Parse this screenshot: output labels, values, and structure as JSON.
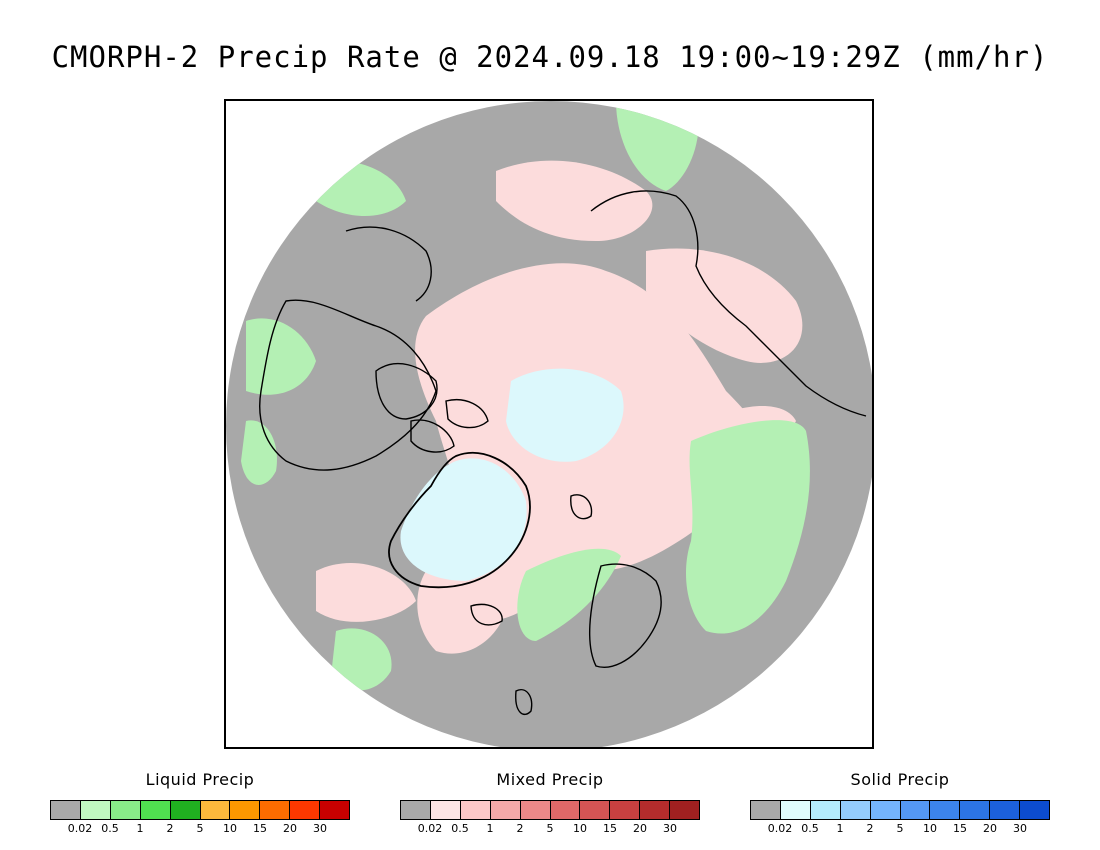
{
  "title": "CMORPH-2 Precip Rate @ 2024.09.18 19:00~19:29Z (mm/hr)",
  "colors": {
    "background_gray": "#a8a8a8",
    "coastline": "#000000",
    "mixed_light": "#fcdcdc",
    "liquid_light": "#b4f0b4",
    "solid_light": "#dcf8fc"
  },
  "legends": [
    {
      "title": "Liquid Precip",
      "labels": [
        "0.02",
        "0.5",
        "1",
        "2",
        "5",
        "10",
        "15",
        "20",
        "30"
      ],
      "colors": [
        "#a8a8a8",
        "#c0f8c0",
        "#88ec88",
        "#50e050",
        "#20b020",
        "#fcb83c",
        "#fc9800",
        "#fc6c00",
        "#fc3800",
        "#c80000"
      ]
    },
    {
      "title": "Mixed Precip",
      "labels": [
        "0.02",
        "0.5",
        "1",
        "2",
        "5",
        "10",
        "15",
        "20",
        "30"
      ],
      "colors": [
        "#a8a8a8",
        "#fce4e4",
        "#fcc8c8",
        "#f4a8a8",
        "#ec8888",
        "#e06868",
        "#d45454",
        "#c84040",
        "#b42c2c",
        "#a02020"
      ]
    },
    {
      "title": "Solid Precip",
      "labels": [
        "0.02",
        "0.5",
        "1",
        "2",
        "5",
        "10",
        "15",
        "20",
        "30"
      ],
      "colors": [
        "#a8a8a8",
        "#e0fcfc",
        "#b4ecfc",
        "#94ccfc",
        "#74b4fc",
        "#5498f4",
        "#3c84ec",
        "#2c74e4",
        "#1c60dc",
        "#0c4cd0"
      ]
    }
  ]
}
